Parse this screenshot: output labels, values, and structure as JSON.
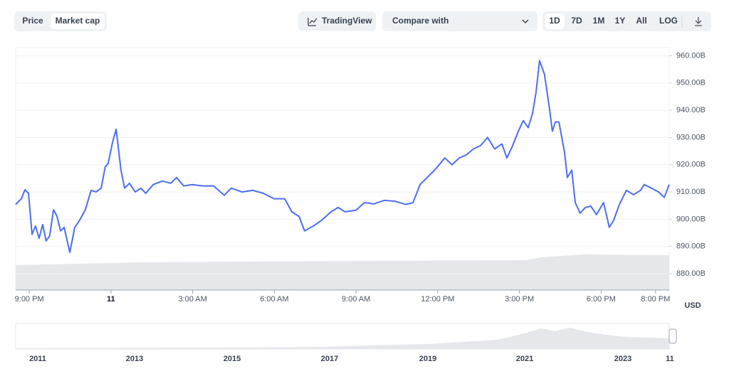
{
  "toolbar": {
    "tabs": [
      "Price",
      "Market cap"
    ],
    "tradingview": "TradingView",
    "compare": "Compare with",
    "ranges": [
      "1D",
      "7D",
      "1M",
      "1Y",
      "All",
      "LOG"
    ]
  },
  "chart_data": {
    "type": "line",
    "color": "#4c6ef0",
    "grid": true,
    "y_unit": "USD",
    "x": [
      -3.5,
      -3.29,
      -3.16,
      -3.03,
      -2.9,
      -2.77,
      -2.64,
      -2.51,
      -2.38,
      -2.25,
      -2.11,
      -1.98,
      -1.85,
      -1.72,
      -1.51,
      -1.33,
      -1.15,
      -0.94,
      -0.73,
      -0.55,
      -0.36,
      -0.21,
      -0.1,
      0.06,
      0.19,
      0.37,
      0.5,
      0.68,
      0.89,
      1.1,
      1.28,
      1.55,
      1.89,
      2.2,
      2.41,
      2.67,
      2.98,
      3.38,
      3.77,
      4.16,
      4.42,
      4.81,
      5.21,
      5.6,
      5.99,
      6.38,
      6.64,
      6.91,
      7.11,
      7.43,
      7.74,
      8.08,
      8.34,
      8.6,
      9.0,
      9.31,
      9.65,
      10.04,
      10.43,
      10.83,
      11.09,
      11.35,
      11.61,
      11.92,
      12.26,
      12.53,
      12.79,
      13.05,
      13.31,
      13.57,
      13.83,
      14.09,
      14.36,
      14.54,
      14.75,
      14.96,
      15.14,
      15.32,
      15.48,
      15.61,
      15.74,
      15.92,
      16.11,
      16.21,
      16.32,
      16.45,
      16.66,
      16.76,
      16.92,
      17.05,
      17.23,
      17.42,
      17.62,
      17.83,
      18.09,
      18.3,
      18.46,
      18.67,
      18.93,
      19.19,
      19.45,
      19.58,
      19.85,
      20.11,
      20.32,
      20.5
    ],
    "values": [
      905.4,
      907.5,
      910.8,
      909.5,
      894.4,
      897.5,
      893,
      898,
      892,
      894,
      903.5,
      901,
      895.7,
      897,
      887.8,
      897,
      899.6,
      903.5,
      910.6,
      910,
      911.4,
      919.2,
      920.5,
      928.4,
      933,
      917.9,
      911.4,
      913.2,
      910,
      911.4,
      909.5,
      912.7,
      914,
      913.2,
      915.3,
      912.2,
      912.7,
      912.2,
      912.2,
      908.8,
      911.4,
      910,
      910.6,
      909.5,
      907.5,
      907.5,
      902.7,
      901,
      895.7,
      897.5,
      899.6,
      902.7,
      904.3,
      902.7,
      903.3,
      906.1,
      905.6,
      906.9,
      906.6,
      905.4,
      906.1,
      912.7,
      915.3,
      918.4,
      922.5,
      920,
      922.5,
      923.6,
      925.8,
      927,
      930,
      925.8,
      927.6,
      922.5,
      927,
      932.3,
      936.2,
      933.6,
      938.8,
      946.7,
      958.2,
      953.2,
      940.1,
      932.3,
      935.7,
      935.7,
      924.4,
      915.3,
      918,
      906.1,
      902.2,
      904.3,
      904.8,
      901.7,
      906.1,
      897,
      899.6,
      905.4,
      910.6,
      909,
      910.6,
      912.7,
      911.4,
      910,
      908,
      912.7
    ],
    "xlim": [
      -3.5,
      20.5
    ],
    "xticks": [
      {
        "value": -3,
        "label": "9:00 PM"
      },
      {
        "value": 0,
        "label": "11"
      },
      {
        "value": 3,
        "label": "3:00 AM"
      },
      {
        "value": 6,
        "label": "6:00 AM"
      },
      {
        "value": 9,
        "label": "9:00 AM"
      },
      {
        "value": 12,
        "label": "12:00 PM"
      },
      {
        "value": 15,
        "label": "3:00 PM"
      },
      {
        "value": 18,
        "label": "6:00 PM"
      },
      {
        "value": 20,
        "label": "8:00 PM"
      }
    ],
    "ylim": [
      874,
      963
    ],
    "yticks": [
      {
        "value": 880,
        "label": "880.00B"
      },
      {
        "value": 890,
        "label": "890.00B"
      },
      {
        "value": 900,
        "label": "900.00B"
      },
      {
        "value": 910,
        "label": "910.00B"
      },
      {
        "value": 920,
        "label": "920.00B"
      },
      {
        "value": 930,
        "label": "930.00B"
      },
      {
        "value": 940,
        "label": "940.00B"
      },
      {
        "value": 950,
        "label": "950.00B"
      },
      {
        "value": 960,
        "label": "960.00B"
      }
    ]
  },
  "navigator": {
    "labels": [
      "2011",
      "2013",
      "2015",
      "2017",
      "2019",
      "2021",
      "2023",
      "11"
    ]
  }
}
